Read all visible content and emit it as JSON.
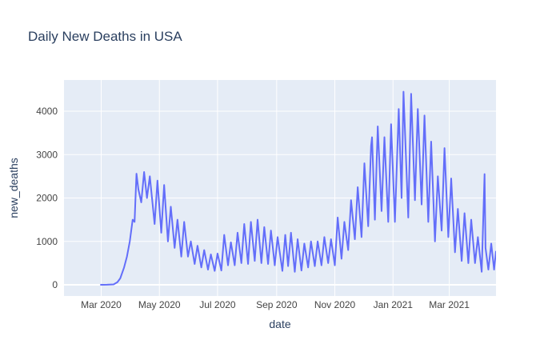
{
  "chart_data": {
    "type": "line",
    "title": "Daily New Deaths in USA",
    "x_label": "date",
    "y_label": "new_deaths",
    "color": "#636efa",
    "grid": true,
    "xlim": [
      "2020-01-22",
      "2021-04-19"
    ],
    "xticks": [
      {
        "value": "2020-03-01",
        "label": "Mar 2020"
      },
      {
        "value": "2020-05-01",
        "label": "May 2020"
      },
      {
        "value": "2020-07-01",
        "label": "Jul 2020"
      },
      {
        "value": "2020-09-01",
        "label": "Sep 2020"
      },
      {
        "value": "2020-11-01",
        "label": "Nov 2020"
      },
      {
        "value": "2021-01-01",
        "label": "Jan 2021"
      },
      {
        "value": "2021-03-01",
        "label": "Mar 2021"
      }
    ],
    "ylim": [
      -258,
      4719
    ],
    "yticks": [
      0,
      1000,
      2000,
      3000,
      4000
    ],
    "x": [
      "2020-02-29",
      "2020-03-07",
      "2020-03-14",
      "2020-03-18",
      "2020-03-21",
      "2020-03-25",
      "2020-03-28",
      "2020-03-31",
      "2020-04-03",
      "2020-04-05",
      "2020-04-07",
      "2020-04-09",
      "2020-04-12",
      "2020-04-15",
      "2020-04-18",
      "2020-04-21",
      "2020-04-26",
      "2020-04-29",
      "2020-05-03",
      "2020-05-06",
      "2020-05-10",
      "2020-05-13",
      "2020-05-17",
      "2020-05-20",
      "2020-05-24",
      "2020-05-27",
      "2020-05-31",
      "2020-06-03",
      "2020-06-07",
      "2020-06-10",
      "2020-06-14",
      "2020-06-17",
      "2020-06-21",
      "2020-06-24",
      "2020-06-28",
      "2020-07-01",
      "2020-07-05",
      "2020-07-08",
      "2020-07-12",
      "2020-07-15",
      "2020-07-19",
      "2020-07-22",
      "2020-07-26",
      "2020-07-29",
      "2020-08-02",
      "2020-08-05",
      "2020-08-09",
      "2020-08-12",
      "2020-08-16",
      "2020-08-19",
      "2020-08-23",
      "2020-08-26",
      "2020-08-30",
      "2020-09-02",
      "2020-09-07",
      "2020-09-10",
      "2020-09-13",
      "2020-09-16",
      "2020-09-20",
      "2020-09-23",
      "2020-09-27",
      "2020-09-30",
      "2020-10-04",
      "2020-10-07",
      "2020-10-11",
      "2020-10-14",
      "2020-10-18",
      "2020-10-21",
      "2020-10-25",
      "2020-10-28",
      "2020-11-01",
      "2020-11-04",
      "2020-11-08",
      "2020-11-11",
      "2020-11-15",
      "2020-11-18",
      "2020-11-22",
      "2020-11-25",
      "2020-11-29",
      "2020-12-02",
      "2020-12-06",
      "2020-12-09",
      "2020-12-10",
      "2020-12-13",
      "2020-12-16",
      "2020-12-20",
      "2020-12-23",
      "2020-12-27",
      "2020-12-30",
      "2021-01-03",
      "2021-01-07",
      "2021-01-10",
      "2021-01-12",
      "2021-01-17",
      "2021-01-20",
      "2021-01-24",
      "2021-01-27",
      "2021-01-31",
      "2021-02-03",
      "2021-02-07",
      "2021-02-10",
      "2021-02-14",
      "2021-02-17",
      "2021-02-21",
      "2021-02-24",
      "2021-02-28",
      "2021-03-03",
      "2021-03-07",
      "2021-03-10",
      "2021-03-14",
      "2021-03-17",
      "2021-03-21",
      "2021-03-24",
      "2021-03-28",
      "2021-03-31",
      "2021-04-04",
      "2021-04-07",
      "2021-04-08",
      "2021-04-11",
      "2021-04-14",
      "2021-04-17",
      "2021-04-19"
    ],
    "values": [
      1,
      2,
      10,
      60,
      150,
      400,
      650,
      1000,
      1500,
      1450,
      2560,
      2200,
      1900,
      2600,
      2000,
      2500,
      1400,
      2400,
      1200,
      2300,
      1000,
      1800,
      850,
      1500,
      650,
      1450,
      650,
      1000,
      480,
      900,
      400,
      800,
      350,
      700,
      320,
      720,
      330,
      1150,
      450,
      980,
      450,
      1200,
      500,
      1400,
      480,
      1450,
      550,
      1500,
      500,
      1330,
      480,
      1250,
      450,
      1100,
      320,
      1150,
      430,
      1200,
      300,
      1050,
      330,
      950,
      400,
      1000,
      430,
      1000,
      450,
      1100,
      500,
      1050,
      450,
      1550,
      600,
      1450,
      800,
      1950,
      1050,
      2250,
      1100,
      2800,
      1350,
      3200,
      3400,
      1500,
      3650,
      1700,
      3400,
      1450,
      3700,
      1450,
      4050,
      2000,
      4450,
      1550,
      4400,
      1950,
      4050,
      1850,
      3900,
      1450,
      3300,
      1000,
      2500,
      1250,
      3150,
      1100,
      2450,
      750,
      1750,
      550,
      1650,
      500,
      1500,
      500,
      1100,
      300,
      2550,
      850,
      350,
      950,
      350,
      780
    ]
  }
}
